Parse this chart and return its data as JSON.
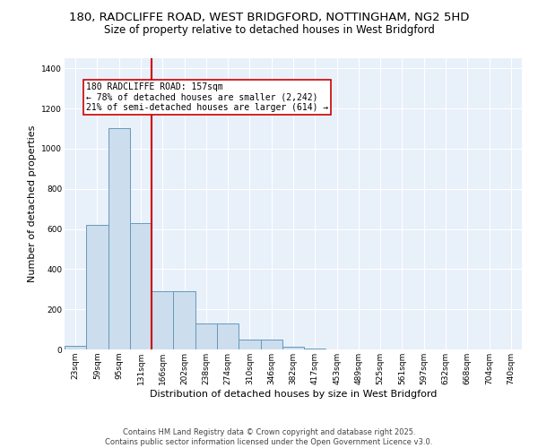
{
  "title_line1": "180, RADCLIFFE ROAD, WEST BRIDGFORD, NOTTINGHAM, NG2 5HD",
  "title_line2": "Size of property relative to detached houses in West Bridgford",
  "xlabel": "Distribution of detached houses by size in West Bridgford",
  "ylabel": "Number of detached properties",
  "bar_color": "#ccdded",
  "bar_edge_color": "#6699bb",
  "bg_color": "#e8f0fa",
  "annotation_text": "180 RADCLIFFE ROAD: 157sqm\n← 78% of detached houses are smaller (2,242)\n21% of semi-detached houses are larger (614) →",
  "vline_color": "#cc0000",
  "vline_x": 3,
  "categories": [
    "23sqm",
    "59sqm",
    "95sqm",
    "131sqm",
    "166sqm",
    "202sqm",
    "238sqm",
    "274sqm",
    "310sqm",
    "346sqm",
    "382sqm",
    "417sqm",
    "453sqm",
    "489sqm",
    "525sqm",
    "561sqm",
    "597sqm",
    "632sqm",
    "668sqm",
    "704sqm",
    "740sqm"
  ],
  "values": [
    20,
    620,
    1100,
    630,
    290,
    290,
    130,
    130,
    50,
    50,
    15,
    5,
    0,
    0,
    0,
    0,
    0,
    0,
    0,
    0,
    0
  ],
  "ylim": [
    0,
    1450
  ],
  "yticks": [
    0,
    200,
    400,
    600,
    800,
    1000,
    1200,
    1400
  ],
  "footer": "Contains HM Land Registry data © Crown copyright and database right 2025.\nContains public sector information licensed under the Open Government Licence v3.0.",
  "title_fontsize": 9.5,
  "subtitle_fontsize": 8.5,
  "tick_fontsize": 6.5,
  "label_fontsize": 8,
  "footer_fontsize": 6,
  "annotation_fontsize": 7
}
